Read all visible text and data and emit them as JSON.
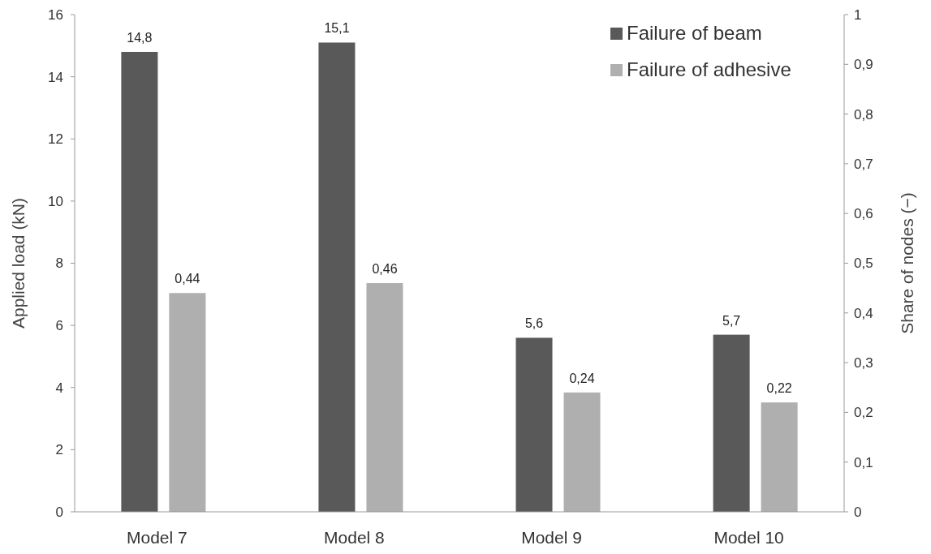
{
  "chart_data": {
    "type": "bar",
    "ylabel": "Applied load (kN)",
    "y2label": "Share of nodes (−)",
    "categories": [
      "Model 7",
      "Model 8",
      "Model 9",
      "Model 10"
    ],
    "series": [
      {
        "name": "Failure of beam",
        "color": "#595959",
        "values": [
          14.8,
          15.1,
          5.6,
          5.7
        ],
        "value_labels": [
          "14,8",
          "15,1",
          "5,6",
          "5,7"
        ]
      },
      {
        "name": "Failure of adhesive",
        "color": "#afafaf",
        "axis": "y2",
        "values": [
          0.44,
          0.46,
          0.24,
          0.22
        ],
        "value_labels": [
          "0,44",
          "0,46",
          "0,24",
          "0,22"
        ]
      }
    ],
    "ylim": [
      0,
      16
    ],
    "yticks": [
      0,
      2,
      4,
      6,
      8,
      10,
      12,
      14,
      16
    ],
    "y2lim": [
      0,
      1
    ],
    "y2ticks": [
      0,
      {
        "value": 0.1,
        "label": "0,1"
      },
      {
        "value": 0.2,
        "label": "0,2"
      },
      {
        "value": 0.3,
        "label": "0,3"
      },
      {
        "value": 0.4,
        "label": "0,4"
      },
      {
        "value": 0.5,
        "label": "0,5"
      },
      {
        "value": 0.6,
        "label": "0,6"
      },
      {
        "value": 0.7,
        "label": "0,7"
      },
      {
        "value": 0.8,
        "label": "0,8"
      },
      {
        "value": 0.9,
        "label": "0,9"
      },
      1
    ],
    "legend": "top right",
    "grid": false
  }
}
